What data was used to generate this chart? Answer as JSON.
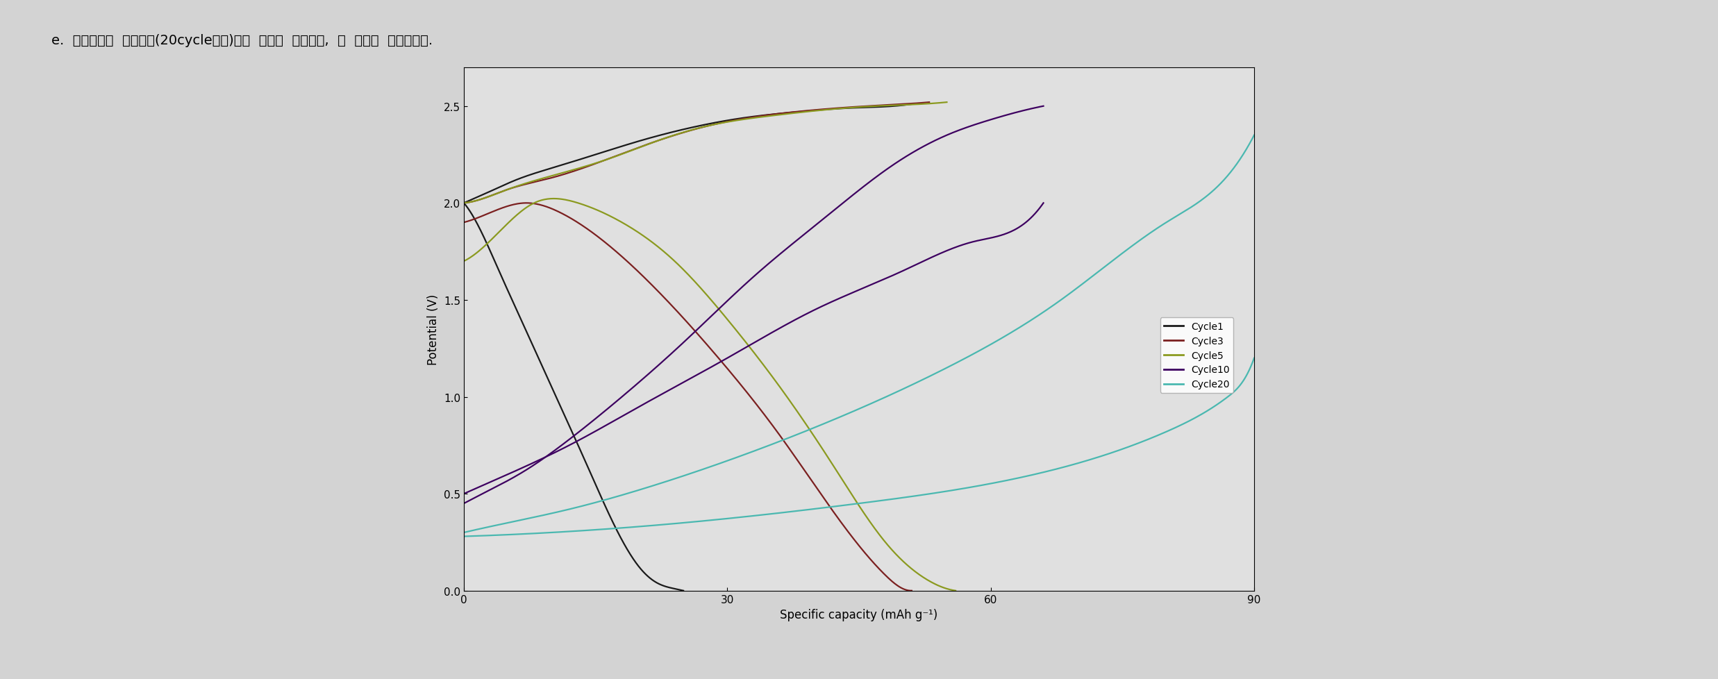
{
  "title_text": "e.  이론용량과  실제용량(20cycle에서)과의  차이를  계산하고,  그  이유를  서술하시오.",
  "xlabel": "Specific capacity (mAh g⁻¹)",
  "ylabel": "Potential (V)",
  "xlim": [
    0,
    90
  ],
  "ylim": [
    0.0,
    2.7
  ],
  "xticks": [
    0,
    30,
    60,
    90
  ],
  "yticks": [
    0.0,
    0.5,
    1.0,
    1.5,
    2.0,
    2.5
  ],
  "bg_color": "#d3d3d3",
  "plot_bg_color": "#e0e0e0",
  "legend_entries": [
    "Cycle1",
    "Cycle3",
    "Cycle5",
    "Cycle10",
    "Cycle20"
  ],
  "colors": {
    "c1": "#1a1a1a",
    "c3": "#7b2020",
    "c5": "#8b9a20",
    "c10": "#3d0060",
    "c20": "#4ab8b0"
  },
  "figsize": [
    24.74,
    9.79
  ],
  "dpi": 100
}
